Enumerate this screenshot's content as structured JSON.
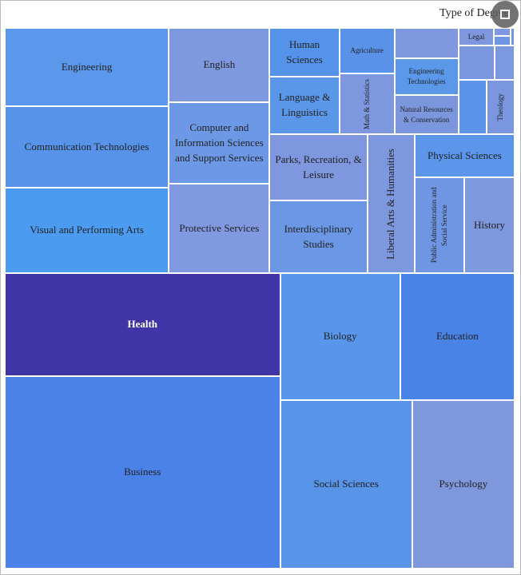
{
  "chart_data": {
    "type": "treemap",
    "title": "Type of Degree",
    "categories": [
      "Engineering",
      "Communication Technologies",
      "Visual and Performing Arts",
      "English",
      "Computer and Information Sciences and Support Services",
      "Protective Services",
      "Human Sciences",
      "Language & Linguistics",
      "Agriculture",
      "Math & Statistics",
      null,
      "Engineering Technologies",
      "Natural Resources & Conservation",
      "Legal",
      null,
      null,
      null,
      null,
      null,
      null,
      "Theology",
      "Parks, Recreation, & Leisure",
      "Interdisciplinary Studies",
      "Liberal Arts & Humanities",
      "Physical Sciences",
      "Public Administration and Social Service",
      "History",
      "Health",
      "Business",
      "Biology",
      "Education",
      "Social Sciences",
      "Psychology"
    ],
    "values": [
      20090,
      20910,
      21935,
      11718,
      12852,
      14112,
      5307,
      6264,
      3933,
      5244,
      3040,
      3680,
      3920,
      990,
      200,
      260,
      115,
      1935,
      1075,
      2380,
      2380,
      10126,
      11102,
      10266,
      6750,
      7440,
      7560,
      44032,
      82904,
      23700,
      22594,
      34815,
      27008
    ],
    "colors": [
      "#5b97eb",
      "#5793e9",
      "#4b9cf0",
      "#7e99e0",
      "#6d98e6",
      "#8099e0",
      "#5593ea",
      "#5b97e9",
      "#5a92ea",
      "#7e98df",
      "#7f97df",
      "#5b98ea",
      "#7b96dd",
      "#7f97df",
      "#7f99e2",
      "#6f95e4",
      "#6f95e4",
      "#7a97e0",
      "#7c98e1",
      "#5c94ea",
      "#7a96df",
      "#7e97de",
      "#6c97e4",
      "#7d98df",
      "#5b96ea",
      "#6e96e3",
      "#7e98de",
      "#3f35a6",
      "#4a82e8",
      "#5896ec",
      "#4a83e6",
      "#5894e8",
      "#7f98dd"
    ]
  }
}
